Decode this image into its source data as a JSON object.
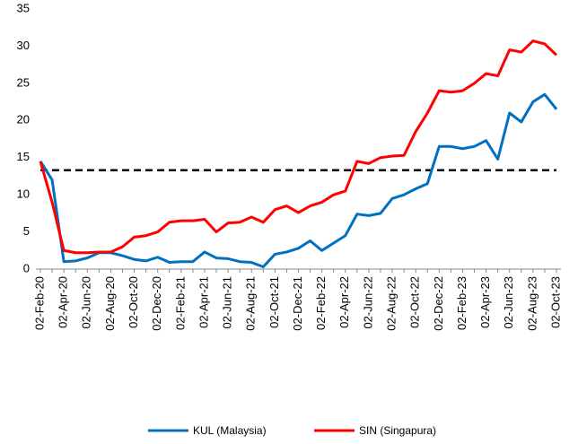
{
  "chart_data": {
    "type": "line",
    "categories": [
      "02-Feb-20",
      null,
      "02-Apr-20",
      null,
      "02-Jun-20",
      null,
      "02-Aug-20",
      null,
      "02-Oct-20",
      null,
      "02-Dec-20",
      null,
      "02-Feb-21",
      null,
      "02-Apr-21",
      null,
      "02-Jun-21",
      null,
      "02-Aug-21",
      null,
      "02-Oct-21",
      null,
      "02-Dec-21",
      null,
      "02-Feb-22",
      null,
      "02-Apr-22",
      null,
      "02-Jun-22",
      null,
      "02-Aug-22",
      null,
      "02-Oct-22",
      null,
      "02-Dec-22",
      null,
      "02-Feb-23",
      null,
      "02-Apr-23",
      null,
      "02-Jun-23",
      null,
      "02-Aug-23",
      null,
      "02-Oct-23"
    ],
    "series": [
      {
        "name": "KUL (Malaysia)",
        "color": "#0070c0",
        "values": [
          14.5,
          12,
          1,
          1.1,
          1.5,
          2.2,
          2.2,
          1.8,
          1.3,
          1.1,
          1.6,
          0.9,
          1.0,
          1.0,
          2.3,
          1.5,
          1.4,
          1.0,
          0.9,
          0.3,
          2.0,
          2.3,
          2.8,
          3.8,
          2.5,
          3.5,
          4.5,
          7.4,
          7.2,
          7.5,
          9.5,
          10.0,
          10.8,
          11.5,
          16.5,
          16.5,
          16.2,
          16.5,
          17.3,
          14.8,
          21,
          19.8,
          22.5,
          23.5,
          21.5
        ]
      },
      {
        "name": "SIN (Singapura)",
        "color": "#ff0000",
        "values": [
          14.5,
          9,
          2.5,
          2.2,
          2.2,
          2.3,
          2.3,
          3.0,
          4.3,
          4.5,
          5.0,
          6.3,
          6.5,
          6.5,
          6.7,
          5.0,
          6.2,
          6.3,
          7.0,
          6.3,
          8.0,
          8.5,
          7.6,
          8.5,
          9.0,
          10.0,
          10.5,
          14.5,
          14.2,
          15.0,
          15.2,
          15.3,
          18.5,
          21,
          24,
          23.8,
          24,
          25,
          26.3,
          26,
          29.5,
          29.2,
          30.7,
          30.3,
          28.8
        ]
      }
    ],
    "hline": 13.3,
    "ylim": [
      0,
      35
    ],
    "yticks": [
      0,
      5,
      10,
      15,
      20,
      25,
      30,
      35
    ],
    "grid": false,
    "legend": "bottom"
  }
}
